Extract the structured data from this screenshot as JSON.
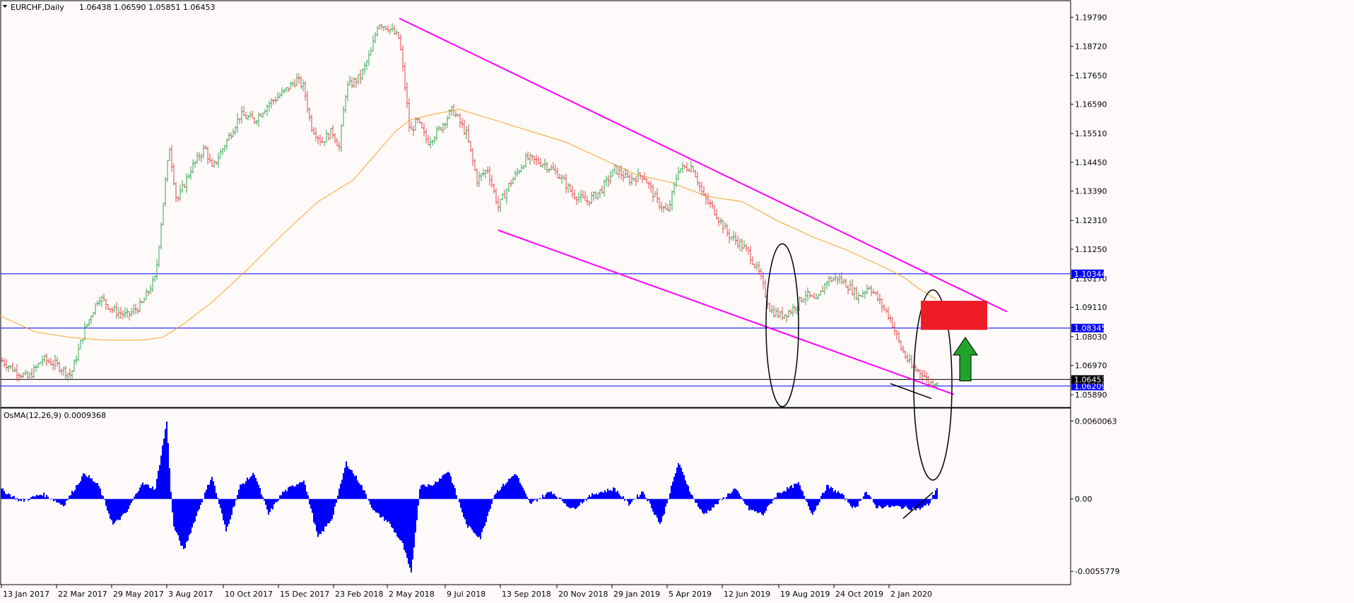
{
  "header": {
    "symbol": "EURCHF,Daily",
    "ohlc": "1.06438 1.06590 1.05851 1.06453"
  },
  "osma": {
    "label": "OsMA(12,26,9) 0.0009368",
    "axis_labels": [
      "0.0060063",
      "0.00",
      "-0.0055779"
    ],
    "axis_values": [
      0.0060063,
      0.0,
      -0.0055779
    ],
    "color": "#0000ff"
  },
  "chart_data": {
    "type": "candlestick",
    "symbol": "EURCHF",
    "timeframe": "Daily",
    "ylim": [
      1.0545,
      1.204
    ],
    "price_axis_labels": [
      "1.19790",
      "1.18720",
      "1.17650",
      "1.16590",
      "1.15510",
      "1.14450",
      "1.13390",
      "1.12310",
      "1.11250",
      "1.10170",
      "1.09110",
      "1.08030",
      "1.06970",
      "1.05890"
    ],
    "price_axis_values": [
      1.1979,
      1.1872,
      1.1765,
      1.1659,
      1.1551,
      1.1445,
      1.1339,
      1.1231,
      1.1125,
      1.1017,
      1.0911,
      1.0803,
      1.0697,
      1.0589
    ],
    "date_labels": [
      "13 Jan 2017",
      "22 Mar 2017",
      "29 May 2017",
      "3 Aug 2017",
      "10 Oct 2017",
      "15 Dec 2017",
      "23 Feb 2018",
      "2 May 2018",
      "9 Jul 2018",
      "13 Sep 2018",
      "20 Nov 2018",
      "29 Jan 2019",
      "5 Apr 2019",
      "12 Jun 2019",
      "19 Aug 2019",
      "24 Oct 2019",
      "2 Jan 2020"
    ],
    "price_path": [
      [
        0,
        1.072
      ],
      [
        20,
        1.068
      ],
      [
        40,
        1.065
      ],
      [
        60,
        1.072
      ],
      [
        80,
        1.07
      ],
      [
        100,
        1.066
      ],
      [
        120,
        1.083
      ],
      [
        140,
        1.095
      ],
      [
        160,
        1.09
      ],
      [
        180,
        1.088
      ],
      [
        200,
        1.092
      ],
      [
        220,
        1.102
      ],
      [
        235,
        1.14
      ],
      [
        240,
        1.15
      ],
      [
        250,
        1.13
      ],
      [
        270,
        1.142
      ],
      [
        290,
        1.15
      ],
      [
        300,
        1.142
      ],
      [
        320,
        1.152
      ],
      [
        340,
        1.162
      ],
      [
        360,
        1.16
      ],
      [
        380,
        1.166
      ],
      [
        400,
        1.17
      ],
      [
        420,
        1.175
      ],
      [
        430,
        1.172
      ],
      [
        440,
        1.158
      ],
      [
        455,
        1.152
      ],
      [
        470,
        1.156
      ],
      [
        480,
        1.15
      ],
      [
        490,
        1.172
      ],
      [
        510,
        1.176
      ],
      [
        525,
        1.185
      ],
      [
        535,
        1.196
      ],
      [
        550,
        1.194
      ],
      [
        565,
        1.19
      ],
      [
        575,
        1.168
      ],
      [
        580,
        1.155
      ],
      [
        590,
        1.16
      ],
      [
        605,
        1.152
      ],
      [
        620,
        1.156
      ],
      [
        640,
        1.164
      ],
      [
        660,
        1.155
      ],
      [
        675,
        1.138
      ],
      [
        690,
        1.142
      ],
      [
        705,
        1.128
      ],
      [
        720,
        1.136
      ],
      [
        745,
        1.146
      ],
      [
        770,
        1.144
      ],
      [
        790,
        1.14
      ],
      [
        810,
        1.133
      ],
      [
        830,
        1.13
      ],
      [
        850,
        1.134
      ],
      [
        870,
        1.142
      ],
      [
        890,
        1.138
      ],
      [
        910,
        1.14
      ],
      [
        930,
        1.13
      ],
      [
        945,
        1.126
      ],
      [
        960,
        1.142
      ],
      [
        980,
        1.143
      ],
      [
        995,
        1.132
      ],
      [
        1010,
        1.127
      ],
      [
        1030,
        1.118
      ],
      [
        1045,
        1.115
      ],
      [
        1060,
        1.111
      ],
      [
        1075,
        1.103
      ],
      [
        1090,
        1.09
      ],
      [
        1105,
        1.088
      ],
      [
        1120,
        1.09
      ],
      [
        1140,
        1.096
      ],
      [
        1155,
        1.093
      ],
      [
        1170,
        1.101
      ],
      [
        1185,
        1.102
      ],
      [
        1200,
        1.099
      ],
      [
        1215,
        1.095
      ],
      [
        1230,
        1.099
      ],
      [
        1245,
        1.093
      ],
      [
        1260,
        1.087
      ],
      [
        1275,
        1.076
      ],
      [
        1290,
        1.069
      ],
      [
        1305,
        1.067
      ],
      [
        1315,
        1.063
      ],
      [
        1325,
        1.064
      ]
    ],
    "sma_path": [
      [
        0,
        1.088
      ],
      [
        50,
        1.082
      ],
      [
        100,
        1.08
      ],
      [
        150,
        1.079
      ],
      [
        200,
        1.079
      ],
      [
        230,
        1.08
      ],
      [
        260,
        1.085
      ],
      [
        300,
        1.093
      ],
      [
        350,
        1.105
      ],
      [
        400,
        1.118
      ],
      [
        450,
        1.13
      ],
      [
        500,
        1.138
      ],
      [
        530,
        1.147
      ],
      [
        560,
        1.156
      ],
      [
        580,
        1.16
      ],
      [
        610,
        1.162
      ],
      [
        650,
        1.164
      ],
      [
        700,
        1.16
      ],
      [
        750,
        1.156
      ],
      [
        800,
        1.152
      ],
      [
        850,
        1.146
      ],
      [
        900,
        1.14
      ],
      [
        950,
        1.137
      ],
      [
        1000,
        1.132
      ],
      [
        1050,
        1.13
      ],
      [
        1100,
        1.123
      ],
      [
        1150,
        1.117
      ],
      [
        1200,
        1.112
      ],
      [
        1250,
        1.106
      ],
      [
        1280,
        1.102
      ],
      [
        1300,
        1.098
      ],
      [
        1325,
        1.094
      ]
    ],
    "horizontal_levels": [
      {
        "value": 1.10344,
        "label": "1.10344",
        "color": "#0000ff"
      },
      {
        "value": 1.08345,
        "label": "1.08345",
        "color": "#0000ff"
      },
      {
        "value": 1.06209,
        "label": "1.06209",
        "color": "#0000ff"
      },
      {
        "value": 1.06453,
        "label": "1.06453",
        "color": "#000000"
      }
    ],
    "trendlines": [
      {
        "name": "upper-channel",
        "color": "#ff00ff",
        "from": [
          565,
          1.1975
        ],
        "to": [
          1425,
          1.0895
        ]
      },
      {
        "name": "lower-channel",
        "color": "#ff00ff",
        "from": [
          705,
          1.1195
        ],
        "to": [
          1350,
          1.059
        ]
      }
    ],
    "divergence_lines": [
      {
        "panel": "price",
        "from": [
          1260,
          1.063
        ],
        "to": [
          1318,
          1.0575
        ]
      },
      {
        "panel": "osma",
        "from": [
          1278,
          -0.0015
        ],
        "to": [
          1320,
          0.0005
        ]
      }
    ],
    "circles": [
      {
        "cx": 1107,
        "cy": 1.0845,
        "rx": 23,
        "ry": 3.0
      },
      {
        "cx": 1320,
        "cy": 1.0625,
        "rx": 27,
        "ry": 3.5
      }
    ],
    "target_box": {
      "x1": 1303,
      "x2": 1397,
      "y_top": 1.0935,
      "y_bottom": 1.0828,
      "color": "#ee1c25"
    },
    "arrow": {
      "x": 1366,
      "y_base": 1.064,
      "y_tip": 1.08,
      "color": "#22a32b",
      "direction": "up"
    },
    "colors": {
      "bull": "#32a852",
      "bear": "#e0484a",
      "sma": "#f5a623",
      "grid": "#000000"
    }
  }
}
